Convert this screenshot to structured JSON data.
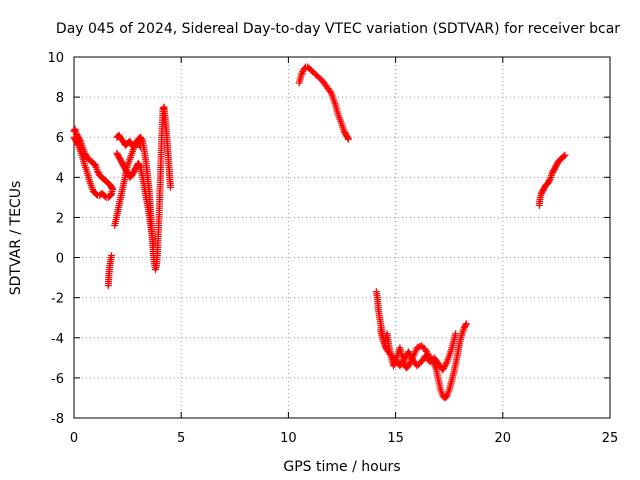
{
  "chart_data": {
    "type": "scatter",
    "title": "Day 045 of 2024, Sidereal Day-to-day VTEC variation (SDTVAR) for receiver bcar",
    "xlabel": "GPS time / hours",
    "ylabel": "SDTVAR / TECUs",
    "xlim": [
      0,
      25
    ],
    "ylim": [
      -8,
      10
    ],
    "xticks": [
      0,
      5,
      10,
      15,
      20,
      25
    ],
    "yticks": [
      -8,
      -6,
      -4,
      -2,
      0,
      2,
      4,
      6,
      8,
      10
    ],
    "xtick_labels": [
      "0",
      "5",
      "10",
      "15",
      "20",
      "25"
    ],
    "ytick_labels": [
      "-8",
      "-6",
      "-4",
      "-2",
      "0",
      "2",
      "4",
      "6",
      "8",
      "10"
    ],
    "grid": true,
    "marker": "+",
    "marker_color": "#ff0000",
    "series": [
      {
        "name": "bcar",
        "segments": [
          {
            "x": [
              0.0,
              0.05,
              0.1,
              0.2,
              0.3,
              0.4,
              0.5,
              0.6,
              0.7,
              0.8,
              0.9,
              1.0,
              1.1,
              1.2,
              1.3,
              1.4,
              1.5,
              1.6,
              1.7,
              1.75,
              1.8,
              1.75,
              1.7,
              1.6,
              1.5,
              1.4,
              1.3,
              1.2,
              1.1,
              1.0,
              0.9,
              0.8,
              0.7,
              0.6,
              0.5,
              0.4,
              0.3,
              0.2,
              0.1,
              0.0
            ],
            "y": [
              6.3,
              6.4,
              6.2,
              6.0,
              5.8,
              5.5,
              5.2,
              5.0,
              4.9,
              4.8,
              4.7,
              4.6,
              4.3,
              4.1,
              4.0,
              3.9,
              3.8,
              3.7,
              3.6,
              3.5,
              3.4,
              3.2,
              3.1,
              3.0,
              3.0,
              3.1,
              3.2,
              3.1,
              3.1,
              3.2,
              3.3,
              3.6,
              3.9,
              4.3,
              4.6,
              5.0,
              5.3,
              5.6,
              5.8,
              6.0
            ]
          },
          {
            "x": [
              1.6,
              1.62,
              1.65,
              1.7,
              1.75
            ],
            "y": [
              -1.4,
              -1.0,
              -0.6,
              -0.2,
              0.1
            ]
          },
          {
            "x": [
              1.9,
              2.0,
              2.1,
              2.2,
              2.3,
              2.4,
              2.5,
              2.6,
              2.7,
              2.8,
              2.9,
              3.0,
              3.1,
              3.2,
              3.3,
              3.4,
              3.5,
              3.55,
              3.6,
              3.65,
              3.7,
              3.75,
              3.8,
              3.85,
              3.9,
              3.95,
              4.0,
              4.05,
              4.1,
              4.15,
              4.2,
              4.25,
              4.3,
              4.35,
              4.4,
              4.45,
              4.5
            ],
            "y": [
              1.6,
              2.1,
              2.6,
              3.1,
              3.6,
              4.1,
              4.6,
              4.9,
              5.2,
              5.5,
              5.7,
              5.9,
              6.0,
              5.8,
              5.2,
              4.4,
              3.4,
              2.6,
              1.8,
              1.0,
              0.2,
              -0.3,
              -0.6,
              -0.4,
              0.4,
              1.6,
              3.0,
              4.6,
              6.2,
              7.4,
              7.5,
              7.0,
              6.4,
              5.7,
              5.0,
              4.2,
              3.5
            ]
          },
          {
            "x": [
              2.0,
              2.1,
              2.2,
              2.3,
              2.4,
              2.5,
              2.6,
              2.7,
              2.8,
              2.9,
              3.0,
              3.1,
              3.2,
              3.3,
              3.4,
              3.5,
              3.6,
              3.7
            ],
            "y": [
              5.2,
              5.0,
              4.8,
              4.6,
              4.4,
              4.2,
              4.0,
              4.1,
              4.3,
              4.5,
              4.7,
              4.5,
              4.0,
              3.4,
              2.8,
              2.2,
              1.4,
              0.6
            ]
          },
          {
            "x": [
              2.0,
              2.1,
              2.2,
              2.3,
              2.4,
              2.5,
              2.6,
              2.7,
              2.8,
              2.9,
              3.0,
              3.1
            ],
            "y": [
              6.0,
              6.1,
              5.9,
              5.8,
              5.6,
              5.7,
              5.8,
              5.6,
              5.5,
              5.7,
              5.8,
              5.5
            ]
          },
          {
            "x": [
              10.5,
              10.55,
              10.6,
              10.7,
              10.8,
              10.9,
              11.0,
              11.2,
              11.4,
              11.6,
              11.8,
              12.0,
              12.1,
              12.2,
              12.3,
              12.4,
              12.5,
              12.6,
              12.7,
              12.8
            ],
            "y": [
              8.7,
              8.9,
              9.1,
              9.35,
              9.5,
              9.5,
              9.4,
              9.2,
              9.0,
              8.8,
              8.5,
              8.2,
              7.9,
              7.6,
              7.2,
              6.9,
              6.6,
              6.3,
              6.1,
              5.9
            ]
          },
          {
            "x": [
              14.1,
              14.15,
              14.2,
              14.3,
              14.4,
              14.5,
              14.6,
              14.7,
              14.8,
              14.9,
              15.0,
              15.1,
              15.2,
              15.3,
              15.4,
              15.5,
              15.6,
              15.8,
              16.0,
              16.2,
              16.4,
              16.6,
              16.8,
              16.9,
              17.0,
              17.1,
              17.2,
              17.3,
              17.4,
              17.5,
              17.6,
              17.7,
              17.8,
              17.9,
              18.0,
              18.1,
              18.2,
              18.3
            ],
            "y": [
              -1.7,
              -2.0,
              -2.6,
              -3.3,
              -3.9,
              -4.3,
              -3.8,
              -4.5,
              -5.0,
              -5.4,
              -5.2,
              -4.8,
              -4.5,
              -4.9,
              -5.3,
              -5.5,
              -5.4,
              -5.0,
              -4.5,
              -4.4,
              -4.6,
              -5.0,
              -5.3,
              -5.6,
              -6.1,
              -6.6,
              -6.9,
              -7.0,
              -6.9,
              -6.6,
              -6.2,
              -5.8,
              -5.3,
              -4.8,
              -4.2,
              -3.8,
              -3.5,
              -3.3
            ]
          },
          {
            "x": [
              14.3,
              14.4,
              14.5,
              14.6,
              14.8,
              15.0,
              15.2,
              15.4,
              15.6,
              15.8,
              16.0,
              16.2,
              16.4,
              16.6,
              16.8,
              17.0,
              17.2,
              17.4,
              17.6,
              17.8
            ],
            "y": [
              -3.6,
              -4.1,
              -4.4,
              -4.6,
              -4.9,
              -5.1,
              -5.4,
              -5.1,
              -4.7,
              -5.1,
              -5.4,
              -5.2,
              -4.9,
              -5.2,
              -5.0,
              -5.3,
              -5.6,
              -5.2,
              -4.6,
              -3.8
            ]
          },
          {
            "x": [
              21.7,
              21.75,
              21.8,
              21.9,
              22.0,
              22.1,
              22.2,
              22.3,
              22.4,
              22.5,
              22.6,
              22.7,
              22.8,
              22.9
            ],
            "y": [
              2.6,
              3.0,
              3.2,
              3.4,
              3.6,
              3.7,
              3.9,
              4.2,
              4.4,
              4.6,
              4.8,
              4.9,
              5.0,
              5.1
            ]
          }
        ]
      }
    ]
  }
}
